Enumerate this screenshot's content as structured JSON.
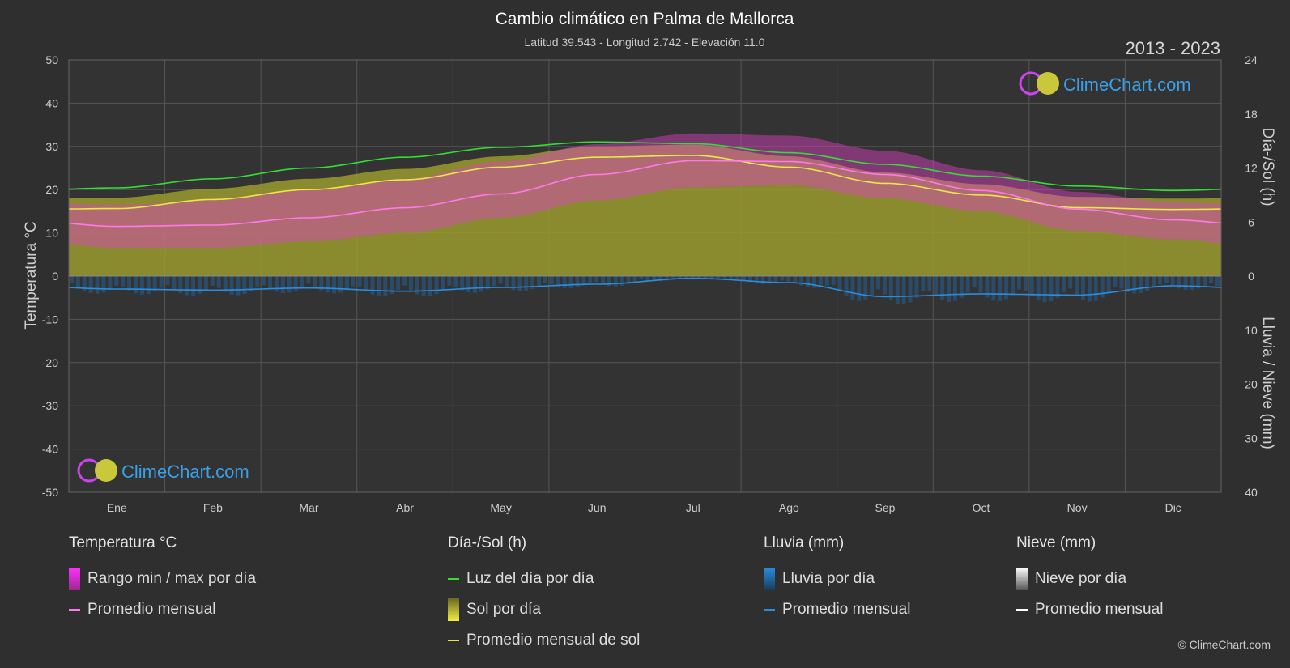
{
  "header": {
    "title": "Cambio climático en Palma de Mallorca",
    "subtitle": "Latitud 39.543 - Longitud 2.742 - Elevación 11.0",
    "years": "2013 - 2023"
  },
  "axes": {
    "left_label": "Temperatura °C",
    "right_top_label": "Día-/Sol (h)",
    "right_bottom_label": "Lluvia / Nieve (mm)"
  },
  "logo_text": "ClimeChart.com",
  "copyright": "© ClimeChart.com",
  "legend": {
    "temperature": {
      "title": "Temperatura °C",
      "range_label": "Rango min / max por día",
      "avg_label": "Promedio mensual"
    },
    "sun": {
      "title": "Día-/Sol (h)",
      "daylight_label": "Luz del día por día",
      "sun_label": "Sol por día",
      "sun_avg_label": "Promedio mensual de sol"
    },
    "rain": {
      "title": "Lluvia (mm)",
      "rain_label": "Lluvia por día",
      "avg_label": "Promedio mensual"
    },
    "snow": {
      "title": "Nieve (mm)",
      "snow_label": "Nieve por día",
      "avg_label": "Promedio mensual"
    }
  },
  "colors": {
    "background": "#2f2f2f",
    "temp_range": "#e040c8",
    "temp_avg": "#ff7ae8",
    "daylight": "#33dd33",
    "sunshine": "#9a9a2e",
    "sun_avg": "#e8e84a",
    "rain": "#1e78c8",
    "rain_avg": "#2a8ee0",
    "snow_avg": "#ffffff"
  },
  "chart_data": {
    "type": "area",
    "months": [
      "Ene",
      "Feb",
      "Mar",
      "Abr",
      "May",
      "Jun",
      "Jul",
      "Ago",
      "Sep",
      "Oct",
      "Nov",
      "Dic"
    ],
    "temp_axis": {
      "min": -50,
      "max": 50,
      "ticks": [
        50,
        40,
        30,
        20,
        10,
        0,
        -10,
        -20,
        -30,
        -40,
        -50
      ]
    },
    "sun_axis": {
      "min": 0,
      "max": 24,
      "ticks": [
        24,
        18,
        12,
        6,
        0
      ]
    },
    "rain_axis": {
      "min": 0,
      "max": 40,
      "ticks": [
        0,
        10,
        20,
        30,
        40
      ]
    },
    "series": [
      {
        "name": "Luz del día por día",
        "unit": "h",
        "values": [
          9.8,
          10.8,
          12.0,
          13.2,
          14.3,
          14.9,
          14.7,
          13.7,
          12.4,
          11.1,
          10.0,
          9.5
        ]
      },
      {
        "name": "Promedio mensual de sol",
        "unit": "h",
        "values": [
          7.5,
          8.5,
          9.6,
          10.7,
          12.1,
          13.2,
          13.4,
          12.1,
          10.3,
          9.0,
          7.6,
          7.4
        ]
      },
      {
        "name": "Promedio mensual",
        "unit": "°C",
        "values": [
          11.5,
          11.8,
          13.5,
          15.8,
          19.0,
          23.5,
          26.7,
          26.5,
          23.5,
          19.8,
          15.5,
          13.0
        ]
      },
      {
        "name": "Temp max",
        "unit": "°C",
        "values": [
          16.5,
          17.5,
          20.0,
          22.5,
          26.5,
          30.5,
          33.0,
          32.5,
          29.0,
          24.5,
          19.5,
          17.0
        ]
      },
      {
        "name": "Temp min",
        "unit": "°C",
        "values": [
          6.5,
          6.5,
          8.0,
          10.0,
          13.5,
          17.5,
          20.5,
          21.0,
          18.0,
          15.0,
          10.5,
          8.5
        ]
      },
      {
        "name": "Lluvia promedio mensual",
        "unit": "mm",
        "values": [
          2.4,
          2.6,
          2.2,
          2.8,
          2.1,
          1.5,
          0.4,
          1.2,
          3.8,
          3.3,
          3.5,
          1.8
        ]
      }
    ]
  }
}
